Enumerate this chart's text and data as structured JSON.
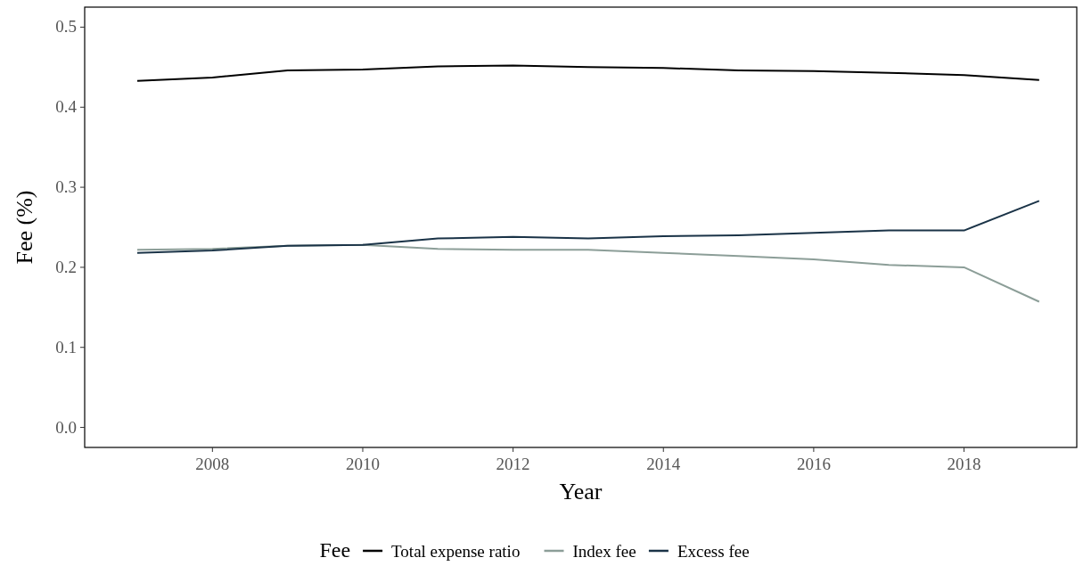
{
  "chart_data": {
    "type": "line",
    "xlabel": "Year",
    "ylabel": "Fee (%)",
    "legend_title": "Fee",
    "legend": "bottom",
    "grid": false,
    "x": [
      2007,
      2008,
      2009,
      2010,
      2011,
      2012,
      2013,
      2014,
      2015,
      2016,
      2017,
      2018,
      2019
    ],
    "xlim": [
      2006.3,
      2019.5
    ],
    "xticks": [
      2008,
      2010,
      2012,
      2014,
      2016,
      2018
    ],
    "ylim": [
      -0.025,
      0.525
    ],
    "yticks": [
      {
        "value": 0,
        "label": "0.0"
      },
      0.1,
      0.2,
      0.3,
      0.4,
      0.5
    ],
    "series": [
      {
        "name": "Total expense ratio",
        "color": "#000000",
        "values": [
          0.433,
          0.437,
          0.446,
          0.447,
          0.451,
          0.452,
          0.45,
          0.449,
          0.446,
          0.445,
          0.443,
          0.44,
          0.434
        ]
      },
      {
        "name": "Index fee",
        "color": "#8c9e98",
        "values": [
          0.222,
          0.223,
          0.227,
          0.228,
          0.223,
          0.222,
          0.222,
          0.218,
          0.214,
          0.21,
          0.203,
          0.2,
          0.157
        ]
      },
      {
        "name": "Excess fee",
        "color": "#1a3347",
        "values": [
          0.218,
          0.221,
          0.227,
          0.228,
          0.236,
          0.238,
          0.236,
          0.239,
          0.24,
          0.243,
          0.246,
          0.246,
          0.283
        ]
      }
    ]
  }
}
